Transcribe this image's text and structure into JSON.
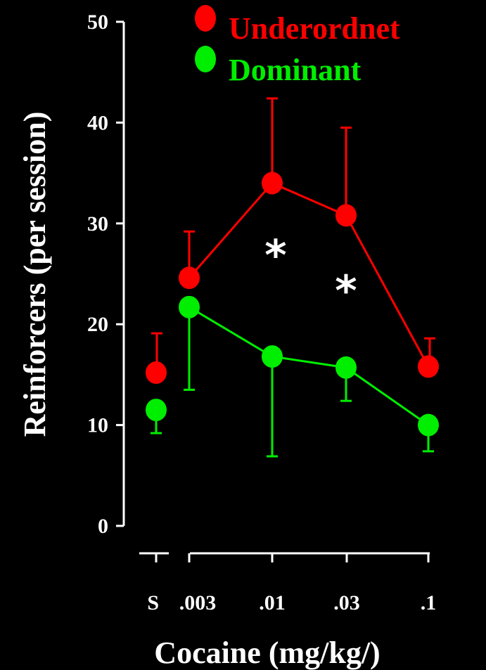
{
  "chart_data": {
    "type": "line",
    "xlabel": "Cocaine (mg/kg/)",
    "ylabel": "Reinforcers (per session)",
    "ylim": [
      0,
      50
    ],
    "yticks": [
      0,
      10,
      20,
      30,
      40,
      50
    ],
    "categories": [
      "S",
      ".003",
      ".01",
      ".03",
      ".1"
    ],
    "legend_position": "top-right",
    "series": [
      {
        "name": "Underordnet",
        "color": "#ff0000",
        "values": [
          15.2,
          24.6,
          34.0,
          30.8,
          15.8
        ],
        "error_upper": [
          19.1,
          29.2,
          42.4,
          39.5,
          18.6
        ],
        "error_lower": [
          null,
          null,
          null,
          null,
          null
        ]
      },
      {
        "name": "Dominant",
        "color": "#00ee00",
        "values": [
          11.5,
          21.7,
          16.8,
          15.7,
          10.0
        ],
        "error_upper": [
          null,
          null,
          null,
          null,
          null
        ],
        "error_lower": [
          9.2,
          13.5,
          6.9,
          12.4,
          7.4
        ]
      }
    ],
    "annotations": [
      {
        "text": "*",
        "category": ".01",
        "y": 27.5
      },
      {
        "text": "*",
        "category": ".03",
        "y": 24.0
      }
    ]
  }
}
